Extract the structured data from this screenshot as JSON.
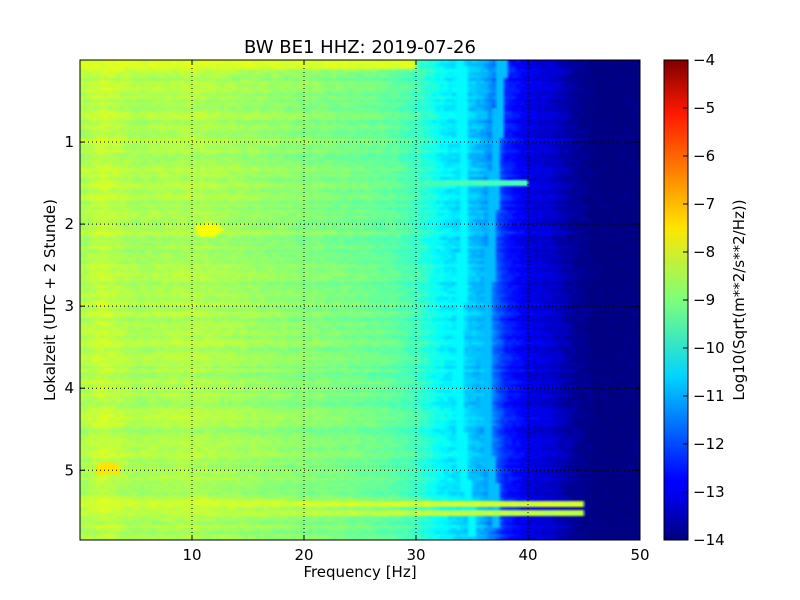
{
  "chart_data": {
    "type": "heatmap",
    "title": "BW BE1 HHZ: 2019-07-26",
    "xlabel": "Frequency [Hz]",
    "ylabel": "Lokalzeit (UTC + 2 Stunde)",
    "xlim": [
      0,
      50
    ],
    "ylim": [
      5.85,
      0.0
    ],
    "x_ticks": [
      10,
      20,
      30,
      40,
      50
    ],
    "x_tick_labels": [
      "10",
      "20",
      "30",
      "40",
      "50"
    ],
    "y_ticks": [
      1,
      2,
      3,
      4,
      5
    ],
    "y_tick_labels": [
      "1",
      "2",
      "3",
      "4",
      "5"
    ],
    "grid": true,
    "grid_style": "dotted",
    "colormap": "jet",
    "colorbar": {
      "label": "Log10(Sqrt(m**2/s**2/Hz))",
      "range": [
        -14,
        -4
      ],
      "ticks": [
        -4,
        -5,
        -6,
        -7,
        -8,
        -9,
        -10,
        -11,
        -12,
        -13,
        -14
      ],
      "tick_labels": [
        "−4",
        "−5",
        "−6",
        "−7",
        "−8",
        "−9",
        "−10",
        "−11",
        "−12",
        "−13",
        "−14"
      ]
    },
    "spectral_profile": {
      "frequency_hz": [
        0,
        2,
        5,
        10,
        15,
        20,
        25,
        28,
        30,
        32,
        34,
        36,
        37,
        38,
        39,
        40,
        42,
        44,
        46,
        50
      ],
      "log10_amplitude": [
        -8.6,
        -8.3,
        -8.6,
        -8.5,
        -8.7,
        -8.9,
        -9.1,
        -9.3,
        -9.6,
        -10.2,
        -10.6,
        -11.0,
        -11.6,
        -12.4,
        -12.7,
        -13.0,
        -13.2,
        -13.7,
        -14.0,
        -14.0
      ]
    },
    "features": [
      {
        "type": "line",
        "frequency_hz": [
          37.7,
          37.2,
          36.8,
          36.4,
          36.2,
          36.5,
          36.9,
          37.2
        ],
        "time_h": [
          0.0,
          1.0,
          2.0,
          3.0,
          4.0,
          4.8,
          5.2,
          5.5
        ],
        "log10_amplitude": -10.9
      },
      {
        "type": "line",
        "frequency_hz": [
          34.0,
          34.2,
          34.3,
          34.0,
          33.8,
          34.2,
          35.0
        ],
        "time_h": [
          0.0,
          1.0,
          2.0,
          3.0,
          4.0,
          5.0,
          5.6
        ],
        "log10_amplitude": -10.3
      },
      {
        "type": "band",
        "time_h": 5.42,
        "frequency_hz_max": 45,
        "log10_amplitude": -8.2
      },
      {
        "type": "band",
        "time_h": 5.52,
        "frequency_hz_max": 45,
        "log10_amplitude": -8.4
      },
      {
        "type": "band",
        "time_h": 0.05,
        "frequency_hz_max": 30,
        "log10_amplitude": -8.1
      },
      {
        "type": "band",
        "time_h": 1.5,
        "frequency_hz_max": 40,
        "log10_amplitude": -9.6
      },
      {
        "type": "hot-spot",
        "frequency_hz": 2.5,
        "time_h": 4.98,
        "log10_amplitude": -7.5
      },
      {
        "type": "hot-spot",
        "frequency_hz": 11.5,
        "time_h": 2.07,
        "log10_amplitude": -7.8
      }
    ]
  }
}
